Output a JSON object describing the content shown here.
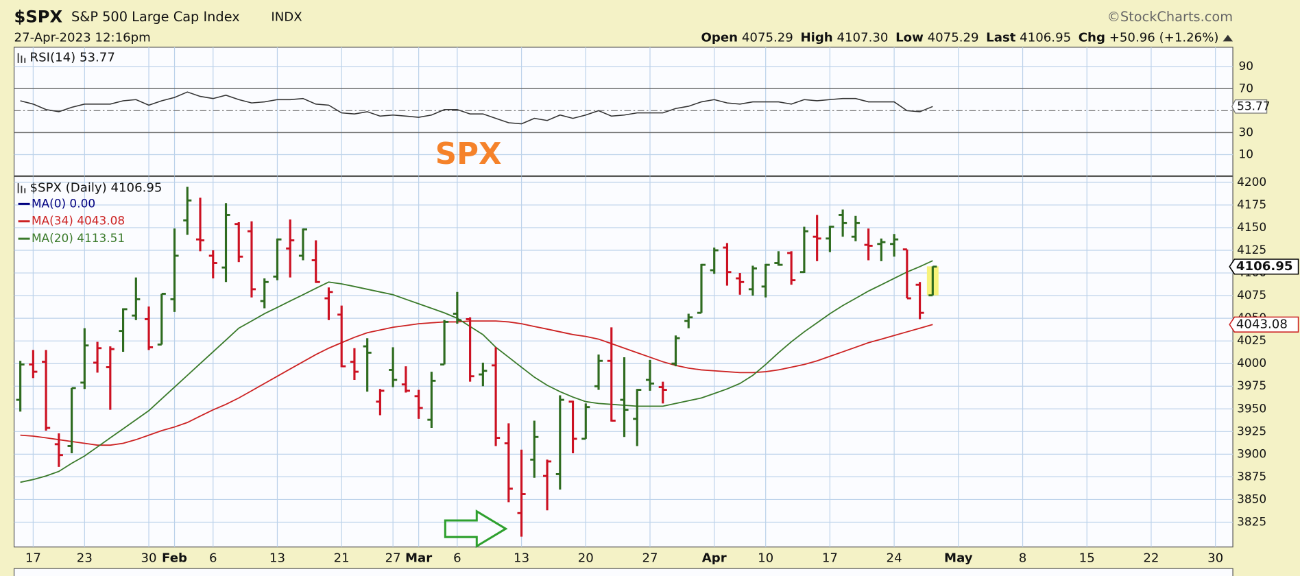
{
  "header": {
    "symbol": "$SPX",
    "name": "S&P 500 Large Cap Index",
    "exchange": "INDX",
    "source": "©StockCharts.com",
    "datetime": "27-Apr-2023 12:16pm",
    "quote": [
      {
        "label": "Open",
        "value": "4075.29"
      },
      {
        "label": "High",
        "value": "4107.30"
      },
      {
        "label": "Low",
        "value": "4075.29"
      },
      {
        "label": "Last",
        "value": "4106.95"
      },
      {
        "label": "Chg",
        "value": "+50.96 (+1.26%)"
      }
    ]
  },
  "annotation": "SPX",
  "chart_data": [
    {
      "type": "line",
      "label": "RSI(14) 53.77",
      "color": "#333333",
      "ylim": [
        -9.2,
        107.7
      ],
      "yticks": [
        10,
        30,
        70,
        90
      ],
      "levels": [
        30,
        70
      ],
      "midline": 50,
      "tag": 53.77,
      "values": [
        59,
        56,
        51,
        49,
        53,
        56,
        56,
        56,
        59,
        60,
        55,
        59,
        62,
        67,
        63,
        61,
        64,
        60,
        57,
        58,
        60,
        60,
        61,
        56,
        55,
        48,
        47,
        49,
        45,
        46,
        45,
        44,
        46,
        51,
        51,
        47,
        47,
        43,
        39,
        38,
        43,
        41,
        46,
        43,
        46,
        50,
        45,
        46,
        48,
        48,
        48,
        52,
        54,
        58,
        60,
        57,
        56,
        58,
        58,
        58,
        56,
        60,
        59,
        60,
        61,
        61,
        58,
        58,
        58,
        50,
        49,
        53.77,
        null,
        null,
        null,
        null,
        null,
        null,
        null,
        null,
        null,
        null,
        null,
        null,
        null,
        null,
        null,
        null,
        null,
        null,
        null,
        null,
        null,
        null,
        null
      ]
    },
    {
      "type": "ohlc",
      "ylim": [
        3797.6,
        4206.4
      ],
      "yticks": [
        3825,
        3850,
        3875,
        3900,
        3925,
        3950,
        3975,
        4000,
        4025,
        4050,
        4075,
        4100,
        4125,
        4150,
        4175,
        4200
      ],
      "grid": true,
      "categories": [
        null,
        "17",
        null,
        null,
        null,
        "23",
        null,
        null,
        null,
        null,
        "30",
        null,
        "Feb",
        null,
        null,
        "6",
        null,
        null,
        null,
        null,
        "13",
        null,
        null,
        null,
        null,
        "21",
        null,
        null,
        null,
        "27",
        null,
        "Mar",
        null,
        null,
        "6",
        null,
        null,
        null,
        null,
        "13",
        null,
        null,
        null,
        null,
        "20",
        null,
        null,
        null,
        null,
        "27",
        null,
        null,
        null,
        null,
        "Apr",
        null,
        null,
        null,
        "10",
        null,
        null,
        null,
        null,
        "17",
        null,
        null,
        null,
        null,
        "24",
        null,
        null,
        null,
        null,
        "May",
        null,
        null,
        null,
        null,
        "8",
        null,
        null,
        null,
        null,
        "15",
        null,
        null,
        null,
        null,
        "22",
        null,
        null,
        null,
        null,
        "30",
        null
      ],
      "series": [
        {
          "name": "$SPX (Daily) 4106.95",
          "up_color": "#2e6b1f",
          "down_color": "#cc1122",
          "open": [
            3960,
            3999,
            4002,
            3911,
            3909,
            3979,
            4001,
            3996,
            4036,
            4053,
            4049,
            4021,
            4071,
            4158,
            4137,
            4119,
            4106,
            4154,
            4146,
            4069,
            4096,
            4127,
            4119,
            4114,
            4072,
            4054,
            4002,
            4019,
            3958,
            3993,
            3977,
            3964,
            3938,
            3999,
            4055,
            4049,
            3988,
            3998,
            3912,
            3835,
            3894,
            3876,
            3878,
            3958,
            3917,
            3975,
            4003,
            3960,
            3939,
            3982,
            3974,
            4000,
            4047,
            4056,
            4103,
            4128,
            4094,
            4082,
            4085,
            4111,
            4122,
            4101,
            4140,
            4138,
            4164,
            4140,
            4131,
            4132,
            4132,
            4126,
            4087,
            4075.29,
            null,
            null,
            null,
            null,
            null,
            null,
            null,
            null,
            null,
            null,
            null,
            null,
            null,
            null,
            null,
            null,
            null,
            null,
            null,
            null,
            null,
            null,
            null
          ],
          "high": [
            4003,
            4015,
            4015,
            3923,
            3973,
            4039,
            4024,
            4019,
            4061,
            4095,
            4063,
            4077,
            4149,
            4195,
            4183,
            4125,
            4177,
            4156,
            4157,
            4094,
            4138,
            4159,
            4149,
            4136,
            4084,
            4064,
            4017,
            4028,
            3972,
            4018,
            3997,
            3971,
            3991,
            4048,
            4079,
            4051,
            4001,
            4018,
            3934,
            3905,
            3937,
            3894,
            3965,
            3959,
            3956,
            4010,
            4040,
            4007,
            3972,
            4004,
            3980,
            4031,
            4055,
            4110,
            4128,
            4133,
            4100,
            4108,
            4110,
            4124,
            4124,
            4151,
            4164,
            4152,
            4170,
            4163,
            4149,
            4138,
            4143,
            4126,
            4090,
            4107.3,
            null,
            null,
            null,
            null,
            null,
            null,
            null,
            null,
            null,
            null,
            null,
            null,
            null,
            null,
            null,
            null,
            null,
            null,
            null,
            null,
            null,
            null,
            null
          ],
          "low": [
            3947,
            3984,
            3926,
            3886,
            3901,
            3972,
            3990,
            3949,
            4013,
            4048,
            4015,
            4021,
            4057,
            4142,
            4124,
            4094,
            4090,
            4112,
            4073,
            4061,
            4092,
            4095,
            4114,
            4089,
            4048,
            3996,
            3982,
            3969,
            3943,
            3974,
            3968,
            3939,
            3929,
            3999,
            4044,
            3980,
            3975,
            3909,
            3847,
            3809,
            3874,
            3838,
            3861,
            3901,
            3917,
            3971,
            3936,
            3919,
            3909,
            3970,
            3956,
            3997,
            4039,
            4056,
            4099,
            4086,
            4076,
            4075,
            4073,
            4108,
            4087,
            4100,
            4113,
            4123,
            4140,
            4135,
            4114,
            4113,
            4118,
            4072,
            4049,
            4075.29,
            null,
            null,
            null,
            null,
            null,
            null,
            null,
            null,
            null,
            null,
            null,
            null,
            null,
            null,
            null,
            null,
            null,
            null,
            null,
            null,
            null,
            null,
            null
          ],
          "close": [
            3999,
            3991,
            3929,
            3899,
            3973,
            4020,
            4017,
            4016,
            4060,
            4071,
            4018,
            4077,
            4119,
            4180,
            4136,
            4111,
            4164,
            4118,
            4082,
            4090,
            4137,
            4136,
            4148,
            4090,
            4079,
            3997,
            3991,
            4012,
            3970,
            3982,
            3970,
            3951,
            3981,
            4046,
            4048,
            3986,
            3992,
            3918,
            3862,
            3856,
            3919,
            3892,
            3960,
            3917,
            3952,
            4003,
            3937,
            3949,
            3971,
            3978,
            3971,
            4028,
            4051,
            4109,
            4125,
            4101,
            4090,
            4105,
            4109,
            4109,
            4092,
            4146,
            4138,
            4151,
            4155,
            4155,
            4130,
            4134,
            4137,
            4072,
            4056,
            4106.95,
            null,
            null,
            null,
            null,
            null,
            null,
            null,
            null,
            null,
            null,
            null,
            null,
            null,
            null,
            null,
            null,
            null,
            null,
            null,
            null,
            null,
            null,
            null
          ]
        }
      ],
      "overlays": [
        {
          "name": "MA(0) 0.00",
          "color": "#000080"
        },
        {
          "name": "MA(34) 4043.08",
          "color": "#cc2222",
          "values": [
            3921,
            3920,
            3918,
            3916,
            3914,
            3912,
            3910,
            3910,
            3912,
            3916,
            3921,
            3926,
            3930,
            3935,
            3942,
            3949,
            3955,
            3962,
            3970,
            3978,
            3986,
            3994,
            4002,
            4010,
            4017,
            4023,
            4029,
            4034,
            4037,
            4040,
            4042,
            4044,
            4045,
            4046,
            4046,
            4047,
            4047,
            4047,
            4046,
            4044,
            4041,
            4038,
            4035,
            4032,
            4030,
            4027,
            4022,
            4017,
            4012,
            4007,
            4002,
            3998,
            3995,
            3993,
            3992,
            3991,
            3990,
            3990,
            3991,
            3993,
            3996,
            3999,
            4003,
            4008,
            4013,
            4018,
            4023,
            4027,
            4031,
            4035,
            4039,
            4043.08,
            null,
            null,
            null,
            null,
            null,
            null,
            null,
            null,
            null,
            null,
            null,
            null,
            null,
            null,
            null,
            null,
            null,
            null,
            null,
            null,
            null,
            null,
            null
          ]
        },
        {
          "name": "MA(20) 4113.51",
          "color": "#3a7a2a",
          "values": [
            3869,
            3872,
            3876,
            3881,
            3890,
            3898,
            3908,
            3918,
            3928,
            3938,
            3948,
            3961,
            3974,
            3987,
            4000,
            4013,
            4026,
            4039,
            4047,
            4055,
            4062,
            4069,
            4076,
            4083,
            4090,
            4088,
            4085,
            4082,
            4079,
            4076,
            4071,
            4066,
            4061,
            4056,
            4050,
            4041,
            4032,
            4018,
            4007,
            3996,
            3985,
            3976,
            3969,
            3963,
            3958,
            3956,
            3955,
            3954,
            3953,
            3953,
            3953,
            3956,
            3959,
            3962,
            3967,
            3972,
            3978,
            3987,
            3999,
            4012,
            4024,
            4035,
            4045,
            4055,
            4064,
            4072,
            4080,
            4087,
            4094,
            4101,
            4107,
            4113.51,
            null,
            null,
            null,
            null,
            null,
            null,
            null,
            null,
            null,
            null,
            null,
            null,
            null,
            null,
            null,
            null,
            null,
            null,
            null,
            null,
            null,
            null,
            null
          ]
        }
      ],
      "tags": [
        {
          "value": 4106.95,
          "color": "#000000"
        },
        {
          "value": 4043.08,
          "color": "#cc2222"
        }
      ]
    }
  ]
}
